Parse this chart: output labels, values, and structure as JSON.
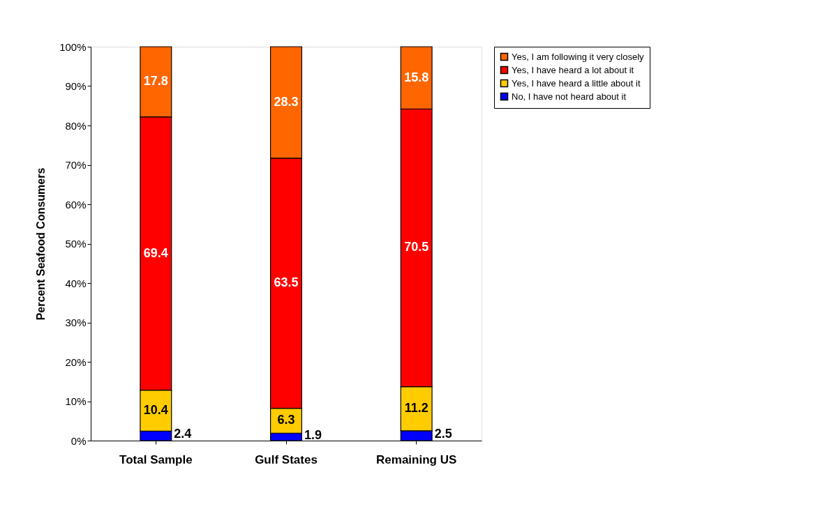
{
  "chart_data": {
    "type": "bar",
    "stacked": true,
    "ylabel": "Percent Seafood Consumers",
    "categories": [
      "Total Sample",
      "Gulf States",
      "Remaining US"
    ],
    "series": [
      {
        "name": "No, I have not heard about it",
        "color": "#0000ff",
        "values": [
          2.4,
          1.9,
          2.5
        ]
      },
      {
        "name": "Yes, I have heard a little about it",
        "color": "#ffcc00",
        "values": [
          10.4,
          6.3,
          11.2
        ]
      },
      {
        "name": "Yes, I have heard a lot about it",
        "color": "#ff0000",
        "values": [
          69.4,
          63.5,
          70.5
        ]
      },
      {
        "name": "Yes, I am following it very closely",
        "color": "#ff6600",
        "values": [
          17.8,
          28.3,
          15.8
        ]
      }
    ],
    "ylim": [
      0,
      100
    ],
    "yticks": [
      {
        "value": 0,
        "label": "0%"
      },
      {
        "value": 10,
        "label": "10%"
      },
      {
        "value": 20,
        "label": "20%"
      },
      {
        "value": 30,
        "label": "30%"
      },
      {
        "value": 40,
        "label": "40%"
      },
      {
        "value": 50,
        "label": "50%"
      },
      {
        "value": 60,
        "label": "60%"
      },
      {
        "value": 70,
        "label": "70%"
      },
      {
        "value": 80,
        "label": "80%"
      },
      {
        "value": 90,
        "label": "90%"
      },
      {
        "value": 100,
        "label": "100%"
      }
    ],
    "grid": false,
    "legend": "right",
    "data_labels": true
  }
}
